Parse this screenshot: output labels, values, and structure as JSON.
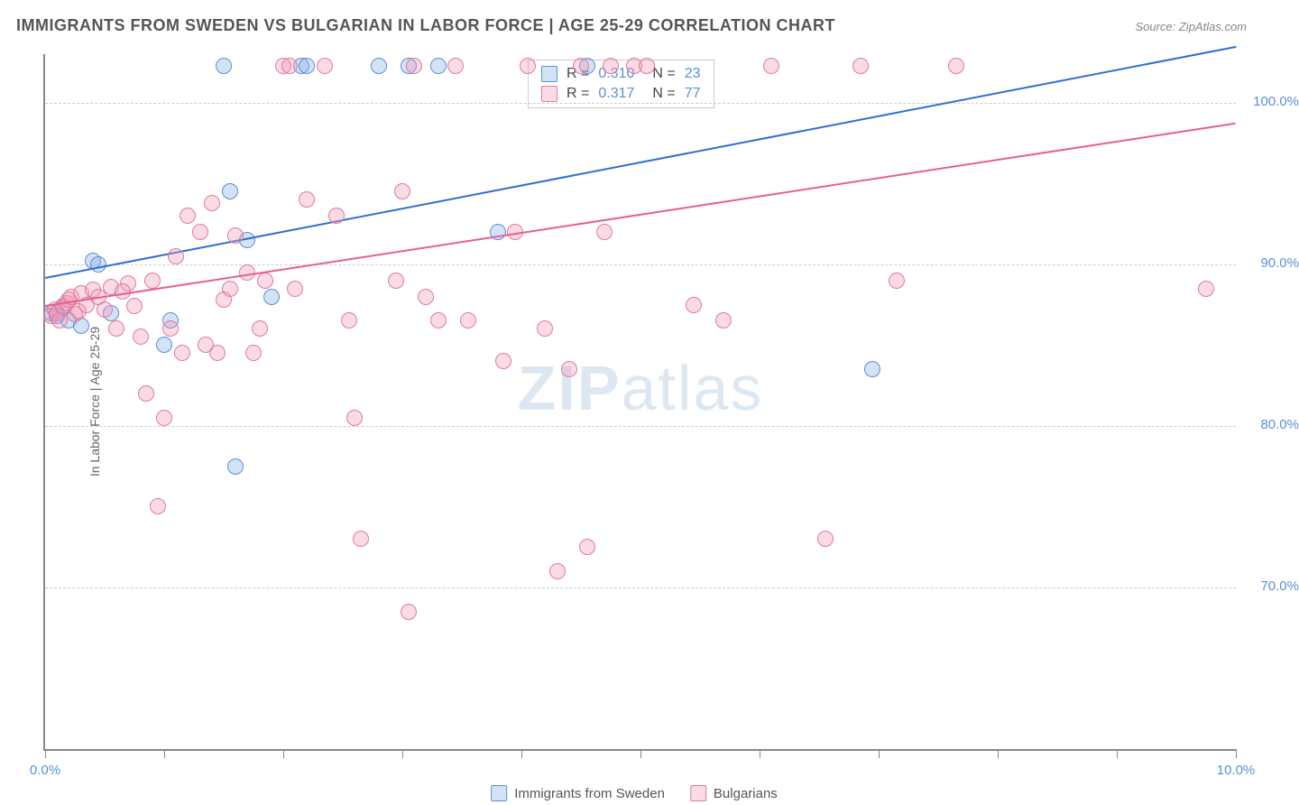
{
  "title": "IMMIGRANTS FROM SWEDEN VS BULGARIAN IN LABOR FORCE | AGE 25-29 CORRELATION CHART",
  "source": "Source: ZipAtlas.com",
  "ylabel": "In Labor Force | Age 25-29",
  "watermark_a": "ZIP",
  "watermark_b": "atlas",
  "chart": {
    "type": "scatter",
    "xlim": [
      0,
      10
    ],
    "ylim": [
      60,
      103
    ],
    "x_ticks": [
      0,
      1,
      2,
      3,
      4,
      5,
      6,
      7,
      8,
      9,
      10
    ],
    "x_tick_labels": {
      "0": "0.0%",
      "10": "10.0%"
    },
    "y_gridlines": [
      70,
      80,
      90,
      100
    ],
    "y_tick_labels": {
      "70": "70.0%",
      "80": "80.0%",
      "90": "90.0%",
      "100": "100.0%"
    },
    "background_color": "#ffffff",
    "grid_color": "#cccccc",
    "axis_color": "#888888",
    "tick_label_color": "#5b8fd6",
    "marker_radius": 9,
    "series": [
      {
        "name": "Immigrants from Sweden",
        "fill": "rgba(130,175,230,0.35)",
        "stroke": "#5b8fd6",
        "line_color": "#2f6fd0",
        "R": "0.310",
        "N": "23",
        "trend": {
          "y_at_x0": 89.2,
          "y_at_x10": 103.5
        },
        "points": [
          [
            0.05,
            87.0
          ],
          [
            0.1,
            86.8
          ],
          [
            0.15,
            87.3
          ],
          [
            0.2,
            86.5
          ],
          [
            0.3,
            86.2
          ],
          [
            0.4,
            90.2
          ],
          [
            0.45,
            90.0
          ],
          [
            0.55,
            87.0
          ],
          [
            1.0,
            85.0
          ],
          [
            1.05,
            86.5
          ],
          [
            1.5,
            102.3
          ],
          [
            1.55,
            94.5
          ],
          [
            1.6,
            77.5
          ],
          [
            1.7,
            91.5
          ],
          [
            1.9,
            88.0
          ],
          [
            2.15,
            102.3
          ],
          [
            2.2,
            102.3
          ],
          [
            2.8,
            102.3
          ],
          [
            3.05,
            102.3
          ],
          [
            3.3,
            102.3
          ],
          [
            3.8,
            92.0
          ],
          [
            4.55,
            102.3
          ],
          [
            6.95,
            83.5
          ]
        ]
      },
      {
        "name": "Bulgarians",
        "fill": "rgba(240,150,180,0.35)",
        "stroke": "#e07ba0",
        "line_color": "#e75f8f",
        "R": "0.317",
        "N": "77",
        "trend": {
          "y_at_x0": 87.5,
          "y_at_x10": 98.8
        },
        "points": [
          [
            0.05,
            86.8
          ],
          [
            0.08,
            87.2
          ],
          [
            0.1,
            87.0
          ],
          [
            0.12,
            86.5
          ],
          [
            0.15,
            87.4
          ],
          [
            0.18,
            87.6
          ],
          [
            0.2,
            87.8
          ],
          [
            0.22,
            88.0
          ],
          [
            0.25,
            86.9
          ],
          [
            0.28,
            87.1
          ],
          [
            0.3,
            88.2
          ],
          [
            0.35,
            87.5
          ],
          [
            0.4,
            88.4
          ],
          [
            0.45,
            88.0
          ],
          [
            0.5,
            87.2
          ],
          [
            0.55,
            88.6
          ],
          [
            0.6,
            86.0
          ],
          [
            0.7,
            88.8
          ],
          [
            0.75,
            87.4
          ],
          [
            0.8,
            85.5
          ],
          [
            0.85,
            82.0
          ],
          [
            0.9,
            89.0
          ],
          [
            0.95,
            75.0
          ],
          [
            1.0,
            80.5
          ],
          [
            1.05,
            86.0
          ],
          [
            1.1,
            90.5
          ],
          [
            1.15,
            84.5
          ],
          [
            1.2,
            93.0
          ],
          [
            1.3,
            92.0
          ],
          [
            1.35,
            85.0
          ],
          [
            1.4,
            93.8
          ],
          [
            1.45,
            84.5
          ],
          [
            1.55,
            88.5
          ],
          [
            1.6,
            91.8
          ],
          [
            1.7,
            89.5
          ],
          [
            1.75,
            84.5
          ],
          [
            1.8,
            86.0
          ],
          [
            1.85,
            89.0
          ],
          [
            2.0,
            102.3
          ],
          [
            2.05,
            102.3
          ],
          [
            2.1,
            88.5
          ],
          [
            2.2,
            94.0
          ],
          [
            2.35,
            102.3
          ],
          [
            2.45,
            93.0
          ],
          [
            2.55,
            86.5
          ],
          [
            2.6,
            80.5
          ],
          [
            2.65,
            73.0
          ],
          [
            2.95,
            89.0
          ],
          [
            3.0,
            94.5
          ],
          [
            3.05,
            68.5
          ],
          [
            3.1,
            102.3
          ],
          [
            3.2,
            88.0
          ],
          [
            3.3,
            86.5
          ],
          [
            3.45,
            102.3
          ],
          [
            3.55,
            86.5
          ],
          [
            3.85,
            84.0
          ],
          [
            3.95,
            92.0
          ],
          [
            4.05,
            102.3
          ],
          [
            4.2,
            86.0
          ],
          [
            4.3,
            71.0
          ],
          [
            4.4,
            83.5
          ],
          [
            4.5,
            102.3
          ],
          [
            4.55,
            72.5
          ],
          [
            4.7,
            92.0
          ],
          [
            4.75,
            102.3
          ],
          [
            4.95,
            102.3
          ],
          [
            5.05,
            102.3
          ],
          [
            5.45,
            87.5
          ],
          [
            5.7,
            86.5
          ],
          [
            6.1,
            102.3
          ],
          [
            6.55,
            73.0
          ],
          [
            6.85,
            102.3
          ],
          [
            7.15,
            89.0
          ],
          [
            7.65,
            102.3
          ],
          [
            9.75,
            88.5
          ],
          [
            0.65,
            88.3
          ],
          [
            1.5,
            87.8
          ]
        ]
      }
    ]
  },
  "legend": {
    "series1": "Immigrants from Sweden",
    "series2": "Bulgarians"
  },
  "stats_labels": {
    "R": "R =",
    "N": "N ="
  }
}
